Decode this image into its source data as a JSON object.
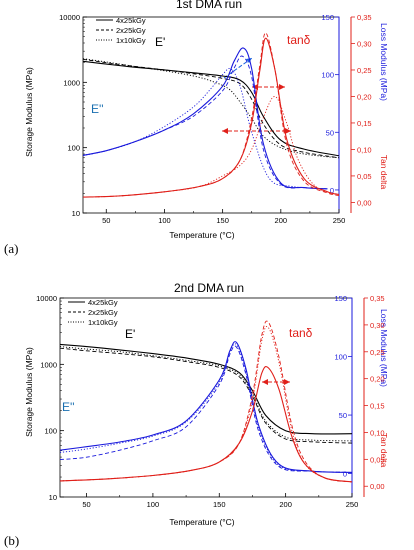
{
  "figure": {
    "panels": [
      {
        "label": "(a)",
        "title": "1st DMA run",
        "xlabel": "Temperature (°C)",
        "ylabel_left": "Storage Modulus (MPa)",
        "ylabel_right_inner": "Loss Modulus (MPa)",
        "ylabel_right_outer": "Tan delta",
        "legend": [
          "4x25kGy",
          "2x25kGy",
          "1x10kGy"
        ],
        "annotations": {
          "eprime": "E'",
          "edoubleprime": "E''",
          "tandelta": "tanδ"
        }
      },
      {
        "label": "(b)",
        "title": "2nd DMA run",
        "xlabel": "Temperature (°C)",
        "ylabel_left": "Storage Modulus (MPa)",
        "ylabel_right_inner": "Loss Modulus (MPa)",
        "ylabel_right_outer": "Tan delta",
        "legend": [
          "4x25kGy",
          "2x25kGy",
          "1x10kGy"
        ],
        "annotations": {
          "eprime": "E'",
          "edoubleprime": "E''",
          "tandelta": "tanδ"
        }
      }
    ]
  },
  "colors": {
    "storage": "#000000",
    "loss": "#1a1adc",
    "tan": "#e0201a"
  },
  "chart_data": [
    {
      "type": "line",
      "title": "1st DMA run",
      "xlabel": "Temperature (°C)",
      "xlim": [
        30,
        250
      ],
      "xticks": [
        50,
        100,
        150,
        200,
        250
      ],
      "y_left": {
        "label": "Storage Modulus (MPa)",
        "scale": "log",
        "lim": [
          10,
          10000
        ],
        "ticks": [
          10,
          100,
          1000,
          10000
        ]
      },
      "y_right_inner": {
        "label": "Loss Modulus (MPa)",
        "lim": [
          -20,
          150
        ],
        "ticks": [
          0,
          50,
          100,
          150
        ]
      },
      "y_right_outer": {
        "label": "Tan delta",
        "lim": [
          -0.02,
          0.35
        ],
        "ticks": [
          0.0,
          0.05,
          0.1,
          0.15,
          0.2,
          0.25,
          0.3,
          0.35
        ],
        "tick_labels": [
          "0,00",
          "0,05",
          "0,10",
          "0,15",
          "0,20",
          "0,25",
          "0,30",
          "0,35"
        ]
      },
      "series": [
        {
          "name": "4x25kGy",
          "quantity": "E'",
          "axis": "left",
          "color": "#000000",
          "dash": "solid",
          "x": [
            30,
            50,
            75,
            100,
            125,
            150,
            165,
            175,
            185,
            200,
            220,
            250
          ],
          "y": [
            2100,
            1900,
            1700,
            1550,
            1400,
            1250,
            1080,
            700,
            300,
            130,
            95,
            75
          ]
        },
        {
          "name": "2x25kGy",
          "quantity": "E'",
          "axis": "left",
          "color": "#000000",
          "dash": "dash",
          "x": [
            30,
            50,
            75,
            100,
            125,
            150,
            165,
            175,
            185,
            200,
            220,
            250
          ],
          "y": [
            2250,
            2000,
            1750,
            1550,
            1350,
            1150,
            950,
            550,
            230,
            110,
            85,
            70
          ]
        },
        {
          "name": "1x10kGy",
          "quantity": "E'",
          "axis": "left",
          "color": "#000000",
          "dash": "dot",
          "x": [
            30,
            50,
            75,
            100,
            125,
            140,
            155,
            165,
            175,
            185,
            200,
            220,
            250
          ],
          "y": [
            2300,
            2050,
            1750,
            1500,
            1250,
            1050,
            800,
            500,
            280,
            150,
            100,
            80,
            70
          ]
        },
        {
          "name": "4x25kGy",
          "quantity": "E''",
          "axis": "right_inner",
          "color": "#1a1adc",
          "dash": "solid",
          "x": [
            30,
            50,
            75,
            100,
            125,
            150,
            160,
            168,
            175,
            185,
            200,
            220,
            240
          ],
          "y": [
            30,
            34,
            42,
            52,
            66,
            90,
            112,
            123,
            105,
            40,
            6,
            2,
            1
          ]
        },
        {
          "name": "2x25kGy",
          "quantity": "E''",
          "axis": "right_inner",
          "color": "#1a1adc",
          "dash": "dash",
          "x": [
            30,
            50,
            75,
            100,
            125,
            150,
            160,
            167,
            175,
            185,
            200,
            220,
            240
          ],
          "y": [
            30,
            34,
            42,
            52,
            64,
            86,
            106,
            116,
            98,
            35,
            5,
            2,
            1
          ]
        },
        {
          "name": "1x10kGy",
          "quantity": "E''",
          "axis": "right_inner",
          "color": "#1a1adc",
          "dash": "dot",
          "x": [
            30,
            50,
            75,
            100,
            125,
            140,
            150,
            157,
            165,
            175,
            190,
            210,
            240
          ],
          "y": [
            30,
            34,
            42,
            55,
            72,
            88,
            100,
            105,
            90,
            50,
            10,
            3,
            1
          ]
        },
        {
          "name": "4x25kGy",
          "quantity": "tanδ",
          "axis": "right_outer",
          "color": "#e0201a",
          "dash": "solid",
          "x": [
            30,
            60,
            100,
            130,
            150,
            165,
            175,
            182,
            187,
            195,
            205,
            220,
            240,
            250
          ],
          "y": [
            0.01,
            0.012,
            0.02,
            0.03,
            0.045,
            0.08,
            0.15,
            0.25,
            0.31,
            0.25,
            0.12,
            0.045,
            0.02,
            0.015
          ]
        },
        {
          "name": "2x25kGy",
          "quantity": "tanδ",
          "axis": "right_outer",
          "color": "#e0201a",
          "dash": "dash",
          "x": [
            30,
            60,
            100,
            130,
            150,
            165,
            175,
            182,
            187,
            195,
            205,
            220,
            240,
            250
          ],
          "y": [
            0.01,
            0.012,
            0.02,
            0.03,
            0.045,
            0.08,
            0.16,
            0.26,
            0.32,
            0.25,
            0.11,
            0.04,
            0.018,
            0.013
          ]
        },
        {
          "name": "1x10kGy",
          "quantity": "tanδ",
          "axis": "right_outer",
          "color": "#e0201a",
          "dash": "dot",
          "x": [
            30,
            60,
            100,
            130,
            150,
            165,
            175,
            185,
            195,
            205,
            215,
            230,
            250
          ],
          "y": [
            0.01,
            0.012,
            0.02,
            0.03,
            0.05,
            0.07,
            0.1,
            0.16,
            0.2,
            0.15,
            0.08,
            0.03,
            0.015
          ]
        }
      ]
    },
    {
      "type": "line",
      "title": "2nd DMA run",
      "xlabel": "Temperature (°C)",
      "xlim": [
        30,
        250
      ],
      "xticks": [
        50,
        100,
        150,
        200,
        250
      ],
      "y_left": {
        "label": "Storage Modulus (MPa)",
        "scale": "log",
        "lim": [
          10,
          10000
        ],
        "ticks": [
          10,
          100,
          1000,
          10000
        ]
      },
      "y_right_inner": {
        "label": "Loss Modulus (MPa)",
        "lim": [
          -20,
          150
        ],
        "ticks": [
          0,
          50,
          100,
          150
        ]
      },
      "y_right_outer": {
        "label": "Tan delta",
        "lim": [
          -0.02,
          0.35
        ],
        "ticks": [
          0.0,
          0.05,
          0.1,
          0.15,
          0.2,
          0.25,
          0.3,
          0.35
        ],
        "tick_labels": [
          "0,00",
          "0,05",
          "0,10",
          "0,15",
          "0,20",
          "0,25",
          "0,30",
          "0,35"
        ]
      },
      "series": [
        {
          "name": "4x25kGy",
          "quantity": "E'",
          "axis": "left",
          "color": "#000000",
          "dash": "solid",
          "x": [
            30,
            50,
            75,
            100,
            125,
            150,
            165,
            175,
            185,
            200,
            220,
            250
          ],
          "y": [
            2000,
            1850,
            1650,
            1450,
            1250,
            1000,
            750,
            400,
            170,
            100,
            90,
            90
          ]
        },
        {
          "name": "2x25kGy",
          "quantity": "E'",
          "axis": "left",
          "color": "#000000",
          "dash": "dash",
          "x": [
            30,
            50,
            75,
            100,
            125,
            150,
            165,
            175,
            185,
            200,
            220,
            250
          ],
          "y": [
            1750,
            1600,
            1450,
            1300,
            1100,
            900,
            650,
            330,
            130,
            75,
            68,
            65
          ]
        },
        {
          "name": "1x10kGy",
          "quantity": "E'",
          "axis": "left",
          "color": "#000000",
          "dash": "dot",
          "x": [
            30,
            50,
            75,
            100,
            125,
            150,
            165,
            175,
            185,
            200,
            220,
            250
          ],
          "y": [
            1850,
            1700,
            1550,
            1350,
            1150,
            950,
            700,
            360,
            140,
            80,
            72,
            70
          ]
        },
        {
          "name": "4x25kGy",
          "quantity": "E''",
          "axis": "right_inner",
          "color": "#1a1adc",
          "dash": "solid",
          "x": [
            30,
            50,
            75,
            100,
            125,
            150,
            158,
            163,
            170,
            180,
            195,
            220,
            250
          ],
          "y": [
            20,
            23,
            27,
            33,
            45,
            80,
            105,
            112,
            90,
            40,
            8,
            2,
            1
          ]
        },
        {
          "name": "2x25kGy",
          "quantity": "E''",
          "axis": "right_inner",
          "color": "#1a1adc",
          "dash": "dash",
          "x": [
            30,
            50,
            75,
            100,
            125,
            150,
            158,
            163,
            170,
            180,
            195,
            220,
            250
          ],
          "y": [
            12,
            14,
            20,
            28,
            40,
            76,
            102,
            108,
            85,
            35,
            6,
            2,
            1
          ]
        },
        {
          "name": "1x10kGy",
          "quantity": "E''",
          "axis": "right_inner",
          "color": "#1a1adc",
          "dash": "dot",
          "x": [
            30,
            50,
            75,
            100,
            125,
            150,
            158,
            163,
            170,
            180,
            195,
            220,
            250
          ],
          "y": [
            18,
            21,
            26,
            32,
            44,
            78,
            104,
            110,
            88,
            38,
            7,
            2,
            1
          ]
        },
        {
          "name": "4x25kGy",
          "quantity": "tanδ",
          "axis": "right_outer",
          "color": "#e0201a",
          "dash": "solid",
          "x": [
            30,
            60,
            100,
            130,
            150,
            165,
            175,
            182,
            187,
            195,
            205,
            215,
            230,
            250
          ],
          "y": [
            0.01,
            0.013,
            0.02,
            0.03,
            0.045,
            0.08,
            0.14,
            0.21,
            0.22,
            0.18,
            0.09,
            0.04,
            0.015,
            0.008
          ]
        },
        {
          "name": "2x25kGy",
          "quantity": "tanδ",
          "axis": "right_outer",
          "color": "#e0201a",
          "dash": "dash",
          "x": [
            30,
            60,
            100,
            130,
            150,
            165,
            175,
            182,
            187,
            195,
            205,
            215,
            230,
            250
          ],
          "y": [
            0.01,
            0.013,
            0.02,
            0.03,
            0.045,
            0.08,
            0.17,
            0.28,
            0.305,
            0.24,
            0.11,
            0.045,
            0.015,
            0.008
          ]
        },
        {
          "name": "1x10kGy",
          "quantity": "tanδ",
          "axis": "right_outer",
          "color": "#e0201a",
          "dash": "dot",
          "x": [
            30,
            60,
            100,
            130,
            150,
            165,
            175,
            182,
            187,
            195,
            205,
            215,
            230,
            250
          ],
          "y": [
            0.01,
            0.013,
            0.02,
            0.03,
            0.045,
            0.08,
            0.16,
            0.27,
            0.295,
            0.23,
            0.1,
            0.04,
            0.015,
            0.008
          ]
        }
      ]
    }
  ]
}
